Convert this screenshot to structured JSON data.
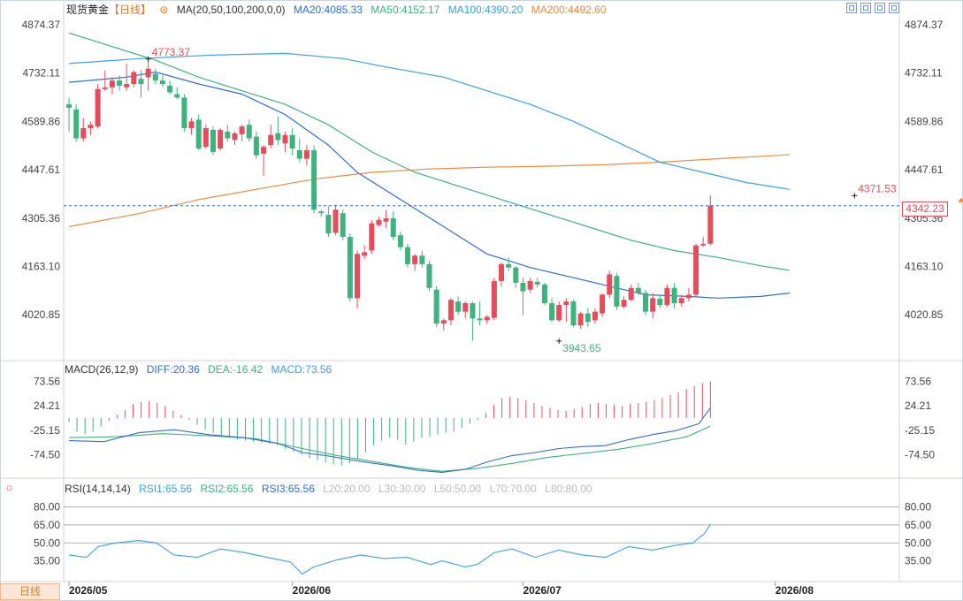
{
  "header": {
    "instrument": "现货黄金",
    "period": "【日线】",
    "ma_label": "MA(20,50,100,200,0,0)",
    "ma20": "MA20:4085.33",
    "ma50": "MA50:4152.17",
    "ma100": "MA100:4390.20",
    "ma200": "MA200:4492.60"
  },
  "macd_header": {
    "label": "MACD(26,12,9)",
    "diff": "DIFF:20.36",
    "dea": "DEA:-16.42",
    "macd": "MACD:73.56"
  },
  "rsi_header": {
    "label": "RSI(14,14,14)",
    "rsi1": "RSI1:65.56",
    "rsi2": "RSI2:65.56",
    "rsi3": "RSI3:65.56",
    "l20": "L20:20.00",
    "l30": "L30:30.00",
    "l50": "L50:50.00",
    "l70": "L70:70.00",
    "l80": "L80:80.00"
  },
  "bottom_tab": "日线",
  "current_price": "4342.23",
  "colors": {
    "up": "#e74c5a",
    "down": "#3db37d",
    "ma20": "#2f6fd0",
    "ma50": "#3db37d",
    "ma100": "#3aa0e6",
    "ma200": "#f08a3c",
    "dea": "#3db37d",
    "diff": "#2f6fd0",
    "rsi": "#3aa0e6",
    "label": "#666666"
  },
  "chart_data": {
    "type": "candlestick",
    "x_labels": [
      "2026/05",
      "2026/06",
      "2026/07",
      "2026/08"
    ],
    "price_axis": {
      "ticks": [
        4874.37,
        4732.11,
        4589.86,
        4447.61,
        4305.36,
        4163.1,
        4020.85
      ],
      "tick_labels": [
        "4874.37",
        "4732.11",
        "4589.86",
        "4447.61",
        "4305.36",
        "4163.10",
        "4020.85"
      ],
      "range": [
        3920,
        4895
      ]
    },
    "annotations": {
      "high": {
        "label": "4773.37",
        "value": 4773.37,
        "index": 11
      },
      "low": {
        "label": "3943.65",
        "value": 3943.65,
        "index": 68
      },
      "last_high": {
        "label": "4371.53",
        "value": 4371.53,
        "index": 109
      }
    },
    "candles": [
      {
        "o": 4640,
        "h": 4660,
        "l": 4560,
        "c": 4630
      },
      {
        "o": 4625,
        "h": 4640,
        "l": 4530,
        "c": 4540
      },
      {
        "o": 4540,
        "h": 4600,
        "l": 4530,
        "c": 4570
      },
      {
        "o": 4570,
        "h": 4590,
        "l": 4550,
        "c": 4580
      },
      {
        "o": 4575,
        "h": 4700,
        "l": 4570,
        "c": 4685
      },
      {
        "o": 4685,
        "h": 4740,
        "l": 4680,
        "c": 4690
      },
      {
        "o": 4690,
        "h": 4720,
        "l": 4670,
        "c": 4710
      },
      {
        "o": 4710,
        "h": 4725,
        "l": 4680,
        "c": 4695
      },
      {
        "o": 4690,
        "h": 4760,
        "l": 4680,
        "c": 4700
      },
      {
        "o": 4700,
        "h": 4740,
        "l": 4690,
        "c": 4735
      },
      {
        "o": 4715,
        "h": 4740,
        "l": 4660,
        "c": 4700
      },
      {
        "o": 4720,
        "h": 4773,
        "l": 4680,
        "c": 4745
      },
      {
        "o": 4730,
        "h": 4745,
        "l": 4700,
        "c": 4710
      },
      {
        "o": 4710,
        "h": 4725,
        "l": 4690,
        "c": 4700
      },
      {
        "o": 4695,
        "h": 4710,
        "l": 4670,
        "c": 4675
      },
      {
        "o": 4670,
        "h": 4690,
        "l": 4655,
        "c": 4660
      },
      {
        "o": 4660,
        "h": 4670,
        "l": 4560,
        "c": 4570
      },
      {
        "o": 4570,
        "h": 4600,
        "l": 4550,
        "c": 4590
      },
      {
        "o": 4595,
        "h": 4610,
        "l": 4505,
        "c": 4510
      },
      {
        "o": 4515,
        "h": 4580,
        "l": 4510,
        "c": 4570
      },
      {
        "o": 4565,
        "h": 4575,
        "l": 4490,
        "c": 4500
      },
      {
        "o": 4510,
        "h": 4570,
        "l": 4505,
        "c": 4565
      },
      {
        "o": 4560,
        "h": 4580,
        "l": 4530,
        "c": 4540
      },
      {
        "o": 4535,
        "h": 4560,
        "l": 4520,
        "c": 4555
      },
      {
        "o": 4552,
        "h": 4580,
        "l": 4530,
        "c": 4575
      },
      {
        "o": 4580,
        "h": 4595,
        "l": 4530,
        "c": 4540
      },
      {
        "o": 4545,
        "h": 4560,
        "l": 4480,
        "c": 4490
      },
      {
        "o": 4495,
        "h": 4520,
        "l": 4430,
        "c": 4515
      },
      {
        "o": 4520,
        "h": 4580,
        "l": 4510,
        "c": 4550
      },
      {
        "o": 4555,
        "h": 4605,
        "l": 4520,
        "c": 4535
      },
      {
        "o": 4525,
        "h": 4560,
        "l": 4500,
        "c": 4550
      },
      {
        "o": 4550,
        "h": 4570,
        "l": 4490,
        "c": 4510
      },
      {
        "o": 4505,
        "h": 4540,
        "l": 4470,
        "c": 4480
      },
      {
        "o": 4480,
        "h": 4520,
        "l": 4460,
        "c": 4505
      },
      {
        "o": 4505,
        "h": 4520,
        "l": 4320,
        "c": 4330
      },
      {
        "o": 4325,
        "h": 4330,
        "l": 4310,
        "c": 4320
      },
      {
        "o": 4315,
        "h": 4340,
        "l": 4250,
        "c": 4260
      },
      {
        "o": 4262,
        "h": 4345,
        "l": 4255,
        "c": 4330
      },
      {
        "o": 4320,
        "h": 4330,
        "l": 4240,
        "c": 4250
      },
      {
        "o": 4250,
        "h": 4260,
        "l": 4060,
        "c": 4070
      },
      {
        "o": 4070,
        "h": 4210,
        "l": 4040,
        "c": 4200
      },
      {
        "o": 4195,
        "h": 4225,
        "l": 4185,
        "c": 4205
      },
      {
        "o": 4210,
        "h": 4300,
        "l": 4200,
        "c": 4290
      },
      {
        "o": 4285,
        "h": 4310,
        "l": 4280,
        "c": 4300
      },
      {
        "o": 4295,
        "h": 4330,
        "l": 4275,
        "c": 4305
      },
      {
        "o": 4305,
        "h": 4325,
        "l": 4240,
        "c": 4250
      },
      {
        "o": 4255,
        "h": 4265,
        "l": 4210,
        "c": 4220
      },
      {
        "o": 4220,
        "h": 4230,
        "l": 4160,
        "c": 4170
      },
      {
        "o": 4170,
        "h": 4200,
        "l": 4150,
        "c": 4195
      },
      {
        "o": 4195,
        "h": 4210,
        "l": 4160,
        "c": 4170
      },
      {
        "o": 4170,
        "h": 4180,
        "l": 4090,
        "c": 4100
      },
      {
        "o": 4095,
        "h": 4105,
        "l": 3985,
        "c": 3995
      },
      {
        "o": 3995,
        "h": 4010,
        "l": 3975,
        "c": 4005
      },
      {
        "o": 4005,
        "h": 4070,
        "l": 3990,
        "c": 4065
      },
      {
        "o": 4060,
        "h": 4075,
        "l": 4020,
        "c": 4030
      },
      {
        "o": 4030,
        "h": 4060,
        "l": 4010,
        "c": 4055
      },
      {
        "o": 4055,
        "h": 4060,
        "l": 3944,
        "c": 4010
      },
      {
        "o": 4010,
        "h": 4060,
        "l": 3990,
        "c": 4005
      },
      {
        "o": 4005,
        "h": 4020,
        "l": 3995,
        "c": 4015
      },
      {
        "o": 4012,
        "h": 4130,
        "l": 4005,
        "c": 4120
      },
      {
        "o": 4120,
        "h": 4175,
        "l": 4105,
        "c": 4170
      },
      {
        "o": 4170,
        "h": 4190,
        "l": 4150,
        "c": 4160
      },
      {
        "o": 4160,
        "h": 4165,
        "l": 4100,
        "c": 4115
      },
      {
        "o": 4115,
        "h": 4130,
        "l": 4020,
        "c": 4090
      },
      {
        "o": 4095,
        "h": 4130,
        "l": 4085,
        "c": 4120
      },
      {
        "o": 4118,
        "h": 4130,
        "l": 4100,
        "c": 4110
      },
      {
        "o": 4110,
        "h": 4115,
        "l": 4050,
        "c": 4055
      },
      {
        "o": 4055,
        "h": 4070,
        "l": 4000,
        "c": 4005
      },
      {
        "o": 4005,
        "h": 4060,
        "l": 4000,
        "c": 4050
      },
      {
        "o": 4050,
        "h": 4070,
        "l": 4000,
        "c": 4060
      },
      {
        "o": 4060,
        "h": 4065,
        "l": 3985,
        "c": 3990
      },
      {
        "o": 3990,
        "h": 4030,
        "l": 3980,
        "c": 4025
      },
      {
        "o": 4025,
        "h": 4040,
        "l": 3985,
        "c": 4000
      },
      {
        "o": 4005,
        "h": 4040,
        "l": 3995,
        "c": 4030
      },
      {
        "o": 4025,
        "h": 4085,
        "l": 4015,
        "c": 4080
      },
      {
        "o": 4080,
        "h": 4150,
        "l": 4070,
        "c": 4140
      },
      {
        "o": 4135,
        "h": 4145,
        "l": 4035,
        "c": 4045
      },
      {
        "o": 4045,
        "h": 4075,
        "l": 4040,
        "c": 4065
      },
      {
        "o": 4065,
        "h": 4110,
        "l": 4060,
        "c": 4100
      },
      {
        "o": 4100,
        "h": 4115,
        "l": 4080,
        "c": 4085
      },
      {
        "o": 4085,
        "h": 4095,
        "l": 4020,
        "c": 4030
      },
      {
        "o": 4030,
        "h": 4085,
        "l": 4010,
        "c": 4070
      },
      {
        "o": 4068,
        "h": 4080,
        "l": 4040,
        "c": 4050
      },
      {
        "o": 4050,
        "h": 4110,
        "l": 4045,
        "c": 4100
      },
      {
        "o": 4100,
        "h": 4115,
        "l": 4040,
        "c": 4055
      },
      {
        "o": 4055,
        "h": 4080,
        "l": 4045,
        "c": 4070
      },
      {
        "o": 4070,
        "h": 4100,
        "l": 4060,
        "c": 4080
      },
      {
        "o": 4080,
        "h": 4230,
        "l": 4075,
        "c": 4225
      },
      {
        "o": 4225,
        "h": 4250,
        "l": 4220,
        "c": 4230
      },
      {
        "o": 4230,
        "h": 4372,
        "l": 4225,
        "c": 4342
      }
    ],
    "ma": {
      "MA20": [
        [
          0,
          4705
        ],
        [
          8,
          4720
        ],
        [
          12,
          4735
        ],
        [
          18,
          4700
        ],
        [
          24,
          4670
        ],
        [
          30,
          4610
        ],
        [
          36,
          4520
        ],
        [
          40,
          4440
        ],
        [
          46,
          4360
        ],
        [
          52,
          4280
        ],
        [
          58,
          4200
        ],
        [
          64,
          4160
        ],
        [
          70,
          4130
        ],
        [
          76,
          4100
        ],
        [
          80,
          4080
        ],
        [
          86,
          4075
        ],
        [
          90,
          4070
        ],
        [
          96,
          4075
        ],
        [
          100,
          4085
        ]
      ],
      "MA50": [
        [
          0,
          4850
        ],
        [
          6,
          4810
        ],
        [
          12,
          4770
        ],
        [
          18,
          4720
        ],
        [
          24,
          4680
        ],
        [
          30,
          4640
        ],
        [
          36,
          4580
        ],
        [
          42,
          4500
        ],
        [
          48,
          4440
        ],
        [
          54,
          4400
        ],
        [
          60,
          4360
        ],
        [
          66,
          4320
        ],
        [
          72,
          4280
        ],
        [
          78,
          4240
        ],
        [
          84,
          4210
        ],
        [
          90,
          4190
        ],
        [
          96,
          4165
        ],
        [
          100,
          4152
        ]
      ],
      "MA100": [
        [
          0,
          4760
        ],
        [
          10,
          4775
        ],
        [
          20,
          4785
        ],
        [
          30,
          4790
        ],
        [
          38,
          4775
        ],
        [
          44,
          4750
        ],
        [
          52,
          4720
        ],
        [
          58,
          4680
        ],
        [
          64,
          4640
        ],
        [
          70,
          4590
        ],
        [
          76,
          4530
        ],
        [
          82,
          4470
        ],
        [
          88,
          4440
        ],
        [
          94,
          4410
        ],
        [
          100,
          4390
        ]
      ],
      "MA200": [
        [
          0,
          4280
        ],
        [
          10,
          4320
        ],
        [
          18,
          4360
        ],
        [
          26,
          4390
        ],
        [
          34,
          4420
        ],
        [
          42,
          4440
        ],
        [
          50,
          4450
        ],
        [
          58,
          4455
        ],
        [
          66,
          4458
        ],
        [
          74,
          4462
        ],
        [
          82,
          4470
        ],
        [
          90,
          4480
        ],
        [
          100,
          4492
        ]
      ]
    },
    "macd": {
      "ticks": [
        73.56,
        24.21,
        -25.15,
        -74.5
      ],
      "tick_labels": [
        "73.56",
        "24.21",
        "-25.15",
        "-74.50"
      ],
      "range": [
        -120,
        80
      ],
      "histogram": [
        -8,
        -28,
        -32,
        -28,
        -18,
        -6,
        6,
        16,
        28,
        32,
        34,
        30,
        24,
        14,
        6,
        -4,
        -14,
        -24,
        -30,
        -36,
        -40,
        -44,
        -46,
        -48,
        -50,
        -52,
        -56,
        -62,
        -68,
        -74,
        -82,
        -86,
        -90,
        -94,
        -96,
        -92,
        -84,
        -70,
        -56,
        -46,
        -40,
        -44,
        -54,
        -48,
        -40,
        -38,
        -34,
        -30,
        -28,
        -20,
        -12,
        -4,
        10,
        26,
        40,
        42,
        40,
        36,
        30,
        24,
        20,
        16,
        14,
        18,
        22,
        28,
        30,
        28,
        26,
        24,
        28,
        30,
        32,
        36,
        40,
        46,
        52,
        58,
        64,
        70,
        73.56
      ],
      "diff": [
        [
          0,
          -46
        ],
        [
          6,
          -48
        ],
        [
          12,
          -30
        ],
        [
          18,
          -24
        ],
        [
          24,
          -34
        ],
        [
          30,
          -40
        ],
        [
          36,
          -52
        ],
        [
          40,
          -70
        ],
        [
          44,
          -76
        ],
        [
          50,
          -88
        ],
        [
          56,
          -98
        ],
        [
          60,
          -106
        ],
        [
          64,
          -110
        ],
        [
          68,
          -104
        ],
        [
          72,
          -88
        ],
        [
          76,
          -76
        ],
        [
          80,
          -70
        ],
        [
          84,
          -62
        ],
        [
          88,
          -58
        ],
        [
          92,
          -56
        ],
        [
          96,
          -44
        ],
        [
          100,
          -34
        ],
        [
          104,
          -26
        ],
        [
          108,
          -12
        ],
        [
          110,
          20.36
        ]
      ],
      "dea": [
        [
          0,
          -40
        ],
        [
          8,
          -38
        ],
        [
          16,
          -32
        ],
        [
          24,
          -36
        ],
        [
          32,
          -42
        ],
        [
          40,
          -62
        ],
        [
          46,
          -76
        ],
        [
          52,
          -88
        ],
        [
          58,
          -100
        ],
        [
          64,
          -108
        ],
        [
          70,
          -102
        ],
        [
          76,
          -92
        ],
        [
          82,
          -80
        ],
        [
          88,
          -72
        ],
        [
          94,
          -64
        ],
        [
          100,
          -52
        ],
        [
          106,
          -38
        ],
        [
          110,
          -16.42
        ]
      ]
    },
    "rsi": {
      "ticks": [
        80,
        65,
        50,
        35
      ],
      "tick_labels": [
        "80.00",
        "65.00",
        "50.00",
        "35.00"
      ],
      "range": [
        20,
        90
      ],
      "reference_lines": [
        80,
        65,
        50
      ],
      "values": [
        [
          0,
          40
        ],
        [
          3,
          38
        ],
        [
          5,
          47
        ],
        [
          8,
          50
        ],
        [
          12,
          52
        ],
        [
          15,
          50
        ],
        [
          18,
          40
        ],
        [
          22,
          38
        ],
        [
          26,
          45
        ],
        [
          30,
          42
        ],
        [
          34,
          38
        ],
        [
          38,
          34
        ],
        [
          40,
          24
        ],
        [
          42,
          30
        ],
        [
          46,
          36
        ],
        [
          50,
          40
        ],
        [
          54,
          37
        ],
        [
          58,
          38
        ],
        [
          62,
          32
        ],
        [
          64,
          35
        ],
        [
          68,
          30
        ],
        [
          70,
          32
        ],
        [
          73,
          42
        ],
        [
          76,
          45
        ],
        [
          80,
          38
        ],
        [
          84,
          44
        ],
        [
          88,
          40
        ],
        [
          92,
          38
        ],
        [
          96,
          47
        ],
        [
          100,
          44
        ],
        [
          104,
          48
        ],
        [
          107,
          50
        ],
        [
          109,
          58
        ],
        [
          110,
          65.56
        ]
      ]
    }
  }
}
